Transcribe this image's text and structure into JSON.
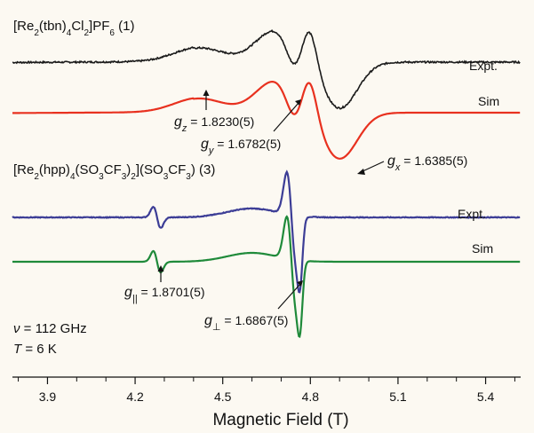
{
  "chart_data": {
    "type": "line",
    "xlabel": "Magnetic Field (T)",
    "xlim": [
      3.78,
      5.52
    ],
    "xticks": [
      "3.9",
      "4.2",
      "4.5",
      "4.8",
      "5.1",
      "5.4"
    ],
    "grid": false,
    "compound_labels": {
      "c1": {
        "pre": "[Re",
        "s1": "2",
        "mid": "(tbn)",
        "s2": "4",
        "cl": "Cl",
        "s3": "2",
        "post": "]PF",
        "s4": "6",
        "num": " (1)"
      },
      "c3": {
        "pre": "[Re",
        "s1": "2",
        "mid": "(hpp)",
        "s2": "4",
        "so": "(SO",
        "s3": "3",
        "cf": "CF",
        "s4": "3",
        "close": ")",
        "s5": "2",
        "post": "](SO",
        "s6": "3",
        "cf2": "CF",
        "s7": "3",
        "end": ") ",
        "num": "(3)"
      }
    },
    "series": [
      {
        "name": "Expt.",
        "compound": "1",
        "color": "#1a1a1a"
      },
      {
        "name": "Sim",
        "compound": "1",
        "color": "#e8311f"
      },
      {
        "name": "Expt.",
        "compound": "3",
        "color": "#3c3d96"
      },
      {
        "name": "Sim",
        "compound": "3",
        "color": "#1f8a3a"
      }
    ],
    "annotations": {
      "gz": {
        "sym": "g",
        "sub": "z",
        "value": " = 1.8230(5)",
        "field": 4.42
      },
      "gy": {
        "sym": "g",
        "sub": "y",
        "value": " = 1.6782(5)",
        "field": 4.73
      },
      "gx": {
        "sym": "g",
        "sub": "x",
        "value": " = 1.6385(5)",
        "field": 4.9
      },
      "gpar": {
        "sym": "g",
        "sub": "||",
        "value": " = 1.8701(5)",
        "field": 4.28
      },
      "gperp": {
        "sym": "g",
        "sub": "⊥",
        "value": " = 1.6867(5)",
        "field": 4.75
      }
    },
    "conditions": {
      "nu_sym": "ν",
      "nu_value": " = 112 GHz",
      "T_sym": "T",
      "T_value": " = 6 K"
    }
  }
}
